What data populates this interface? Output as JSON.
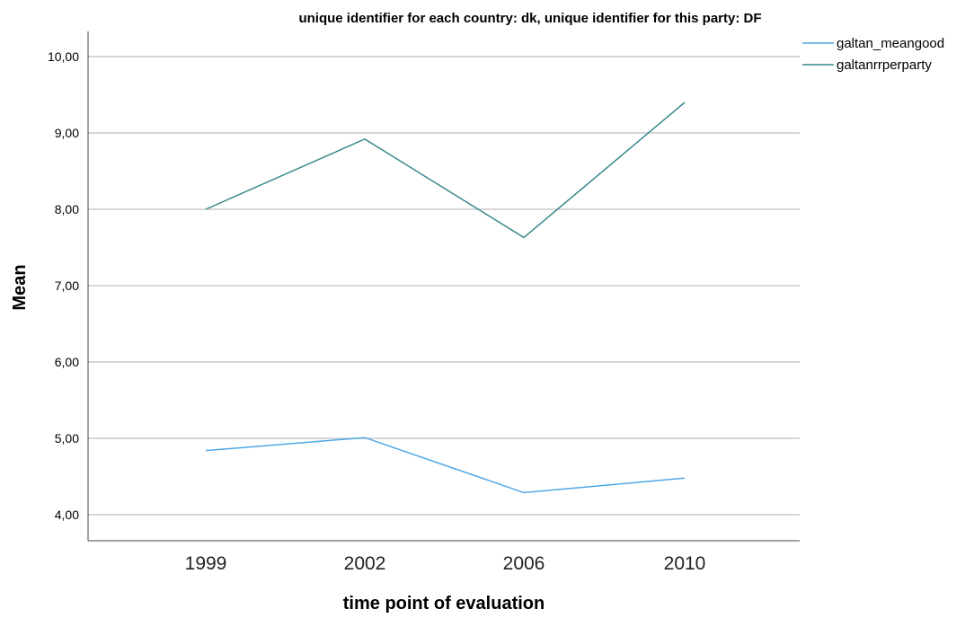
{
  "chart_data": {
    "type": "line",
    "title": "unique identifier for each country: dk, unique identifier for this party: DF",
    "xlabel": "time point of evaluation",
    "ylabel": "Mean",
    "categories": [
      "1999",
      "2002",
      "2006",
      "2010"
    ],
    "ylim": [
      3.7,
      10.35
    ],
    "yticks": [
      4,
      5,
      6,
      7,
      8,
      9,
      10
    ],
    "ytick_labels": [
      "4,00",
      "5,00",
      "6,00",
      "7,00",
      "8,00",
      "9,00",
      "10,00"
    ],
    "grid": true,
    "legend_position": "top-right",
    "series": [
      {
        "name": "galtan_meangood",
        "color": "#4ea7e8",
        "values": [
          4.84,
          5.01,
          4.29,
          4.48
        ]
      },
      {
        "name": "galtanrrperparty",
        "color": "#3a8a8c",
        "values": [
          8.0,
          8.92,
          7.63,
          9.4
        ]
      }
    ]
  }
}
